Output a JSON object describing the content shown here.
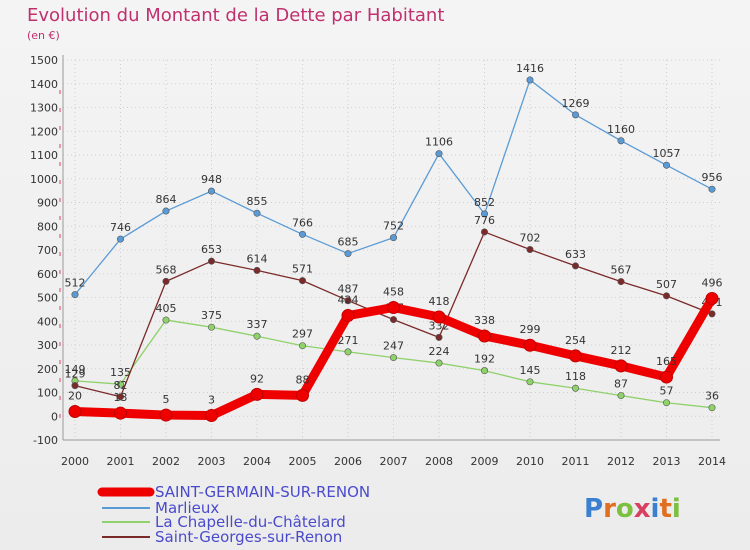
{
  "header": {
    "title": "Evolution du Montant de la Dette par Habitant",
    "subtitle": "(en €)"
  },
  "brand": {
    "text": "Proxiti"
  },
  "chart_data": {
    "type": "line",
    "title": "Evolution du Montant de la Dette par Habitant",
    "subtitle": "(en €)",
    "xlabel": "",
    "ylabel": "",
    "x": [
      2000,
      2001,
      2002,
      2003,
      2004,
      2005,
      2006,
      2007,
      2008,
      2009,
      2010,
      2011,
      2012,
      2013,
      2014
    ],
    "ylim": [
      -100,
      1500
    ],
    "yticks": [
      -100,
      0,
      100,
      200,
      300,
      400,
      500,
      600,
      700,
      800,
      900,
      1000,
      1100,
      1200,
      1300,
      1400,
      1500
    ],
    "grid": true,
    "legend_position": "bottom-left",
    "series": [
      {
        "name": "SAINT-GERMAIN-SUR-RENON",
        "color": "#ee0000",
        "values": [
          20,
          13,
          5,
          3,
          92,
          88,
          424,
          458,
          418,
          338,
          299,
          254,
          212,
          165,
          496
        ]
      },
      {
        "name": "Marlieux",
        "color": "#5b9bd5",
        "values": [
          512,
          746,
          864,
          948,
          855,
          766,
          685,
          752,
          1106,
          852,
          1416,
          1269,
          1160,
          1057,
          956
        ]
      },
      {
        "name": "La Chapelle-du-Châtelard",
        "color": "#8fd16a",
        "values": [
          149,
          135,
          405,
          375,
          337,
          297,
          271,
          247,
          224,
          192,
          145,
          118,
          87,
          57,
          36
        ]
      },
      {
        "name": "Saint-Georges-sur-Renon",
        "color": "#7b2a2a",
        "values": [
          129,
          82,
          568,
          653,
          614,
          571,
          487,
          407,
          332,
          776,
          702,
          633,
          567,
          507,
          431
        ]
      }
    ]
  }
}
